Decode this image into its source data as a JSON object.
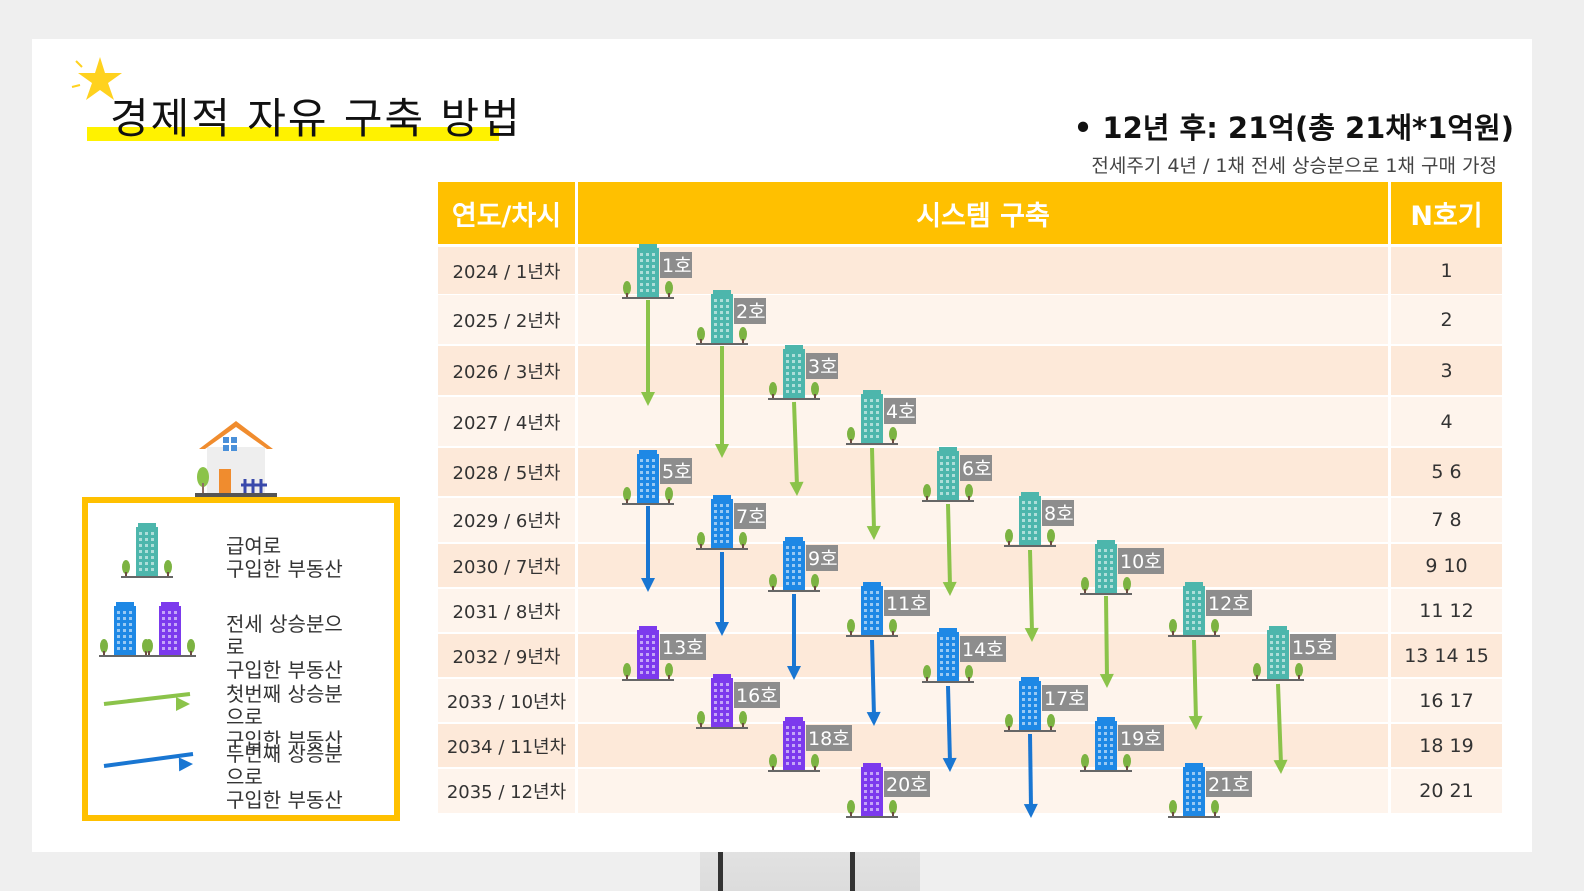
{
  "title": "경제적 자유 구축 방법",
  "headline": "• 12년 후: 21억(총 21채*1억원)",
  "subline": "전세주기 4년 / 1채 전세 상승분으로 1채 구매 가정",
  "table": {
    "headers": [
      "연도/차시",
      "시스템 구축",
      "N호기"
    ],
    "rows": [
      {
        "year": "2024 / 1년차",
        "n": "1"
      },
      {
        "year": "2025 / 2년차",
        "n": "2"
      },
      {
        "year": "2026 / 3년차",
        "n": "3"
      },
      {
        "year": "2027 / 4년차",
        "n": "4"
      },
      {
        "year": "2028 / 5년차",
        "n": "5 6"
      },
      {
        "year": "2029 / 6년차",
        "n": "7 8"
      },
      {
        "year": "2030 / 7년차",
        "n": "9 10"
      },
      {
        "year": "2031 / 8년차",
        "n": "11 12"
      },
      {
        "year": "2032 / 9년차",
        "n": "13 14 15"
      },
      {
        "year": "2033 / 10년차",
        "n": "16 17"
      },
      {
        "year": "2034 / 11년차",
        "n": "18 19"
      },
      {
        "year": "2035 / 12년차",
        "n": "20  21"
      }
    ]
  },
  "buildings": [
    {
      "label": "1호",
      "type": "salary"
    },
    {
      "label": "2호",
      "type": "salary"
    },
    {
      "label": "3호",
      "type": "salary"
    },
    {
      "label": "4호",
      "type": "salary"
    },
    {
      "label": "5호",
      "type": "jeonse"
    },
    {
      "label": "6호",
      "type": "salary"
    },
    {
      "label": "7호",
      "type": "jeonse"
    },
    {
      "label": "8호",
      "type": "salary"
    },
    {
      "label": "9호",
      "type": "jeonse"
    },
    {
      "label": "10호",
      "type": "salary"
    },
    {
      "label": "11호",
      "type": "jeonse"
    },
    {
      "label": "12호",
      "type": "salary"
    },
    {
      "label": "13호",
      "type": "jeonse2"
    },
    {
      "label": "14호",
      "type": "jeonse"
    },
    {
      "label": "15호",
      "type": "salary"
    },
    {
      "label": "16호",
      "type": "jeonse2"
    },
    {
      "label": "17호",
      "type": "jeonse"
    },
    {
      "label": "18호",
      "type": "jeonse2"
    },
    {
      "label": "19호",
      "type": "jeonse"
    },
    {
      "label": "20호",
      "type": "jeonse2"
    },
    {
      "label": "21호",
      "type": "jeonse"
    }
  ],
  "legend": [
    {
      "text": "급여로\n구입한 부동산"
    },
    {
      "text": "전세 상승분으\n로\n구입한 부동산"
    },
    {
      "text": "첫번째 상승분\n으로\n구입한 부동산"
    },
    {
      "text": "두번째 상승분\n으로\n구입한 부동산"
    }
  ],
  "colors": {
    "header": "#ffc000",
    "row_odd": "#fde9d9",
    "row_even": "#fef4ec",
    "title_underline": "#fff200",
    "salary_building": "#4db6ac",
    "jeonse_building": "#1e88e5",
    "jeonse2_building": "#7c3aed",
    "first_arrow": "#8bc34a",
    "second_arrow": "#1976d2",
    "label_bg": "#8d8d8d"
  }
}
